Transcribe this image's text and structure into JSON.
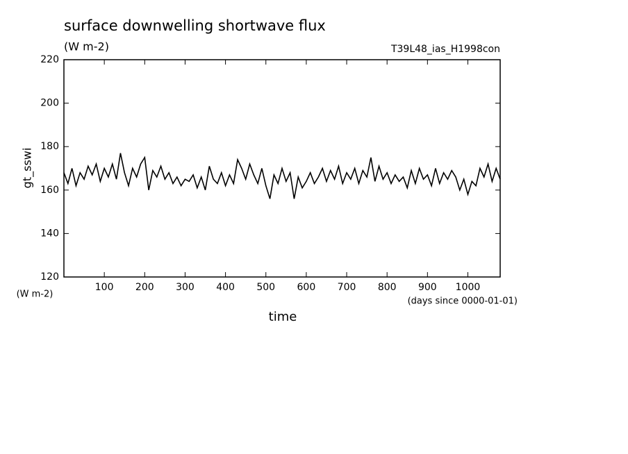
{
  "chart_data": {
    "type": "line",
    "title": "surface downwelling shortwave flux",
    "subtitle": "(W m-2)",
    "experiment": "T39L48_ias_H1998con",
    "y_label": "gt_sswi",
    "y_unit": "(W m-2)",
    "x_label": "time",
    "x_unit": "(days since 0000-01-01)",
    "xlim": [
      0,
      1080
    ],
    "xticks": [
      100,
      200,
      300,
      400,
      500,
      600,
      700,
      800,
      900,
      1000
    ],
    "ylim": [
      120,
      220
    ],
    "yticks": [
      120,
      140,
      160,
      180,
      200,
      220
    ],
    "x": [
      0,
      10,
      20,
      30,
      40,
      50,
      60,
      70,
      80,
      90,
      100,
      110,
      120,
      130,
      140,
      150,
      160,
      170,
      180,
      190,
      200,
      210,
      220,
      230,
      240,
      250,
      260,
      270,
      280,
      290,
      300,
      310,
      320,
      330,
      340,
      350,
      360,
      370,
      380,
      390,
      400,
      410,
      420,
      430,
      440,
      450,
      460,
      470,
      480,
      490,
      500,
      510,
      520,
      530,
      540,
      550,
      560,
      570,
      580,
      590,
      600,
      610,
      620,
      630,
      640,
      650,
      660,
      670,
      680,
      690,
      700,
      710,
      720,
      730,
      740,
      750,
      760,
      770,
      780,
      790,
      800,
      810,
      820,
      830,
      840,
      850,
      860,
      870,
      880,
      890,
      900,
      910,
      920,
      930,
      940,
      950,
      960,
      970,
      980,
      990,
      1000,
      1010,
      1020,
      1030,
      1040,
      1050,
      1060,
      1070,
      1080
    ],
    "series": [
      {
        "color": "#000000",
        "values": [
          168,
          163,
          170,
          162,
          168,
          165,
          171,
          167,
          172,
          164,
          170,
          166,
          172,
          165,
          177,
          168,
          162,
          170,
          166,
          172,
          175,
          160,
          169,
          166,
          171,
          165,
          168,
          163,
          166,
          162,
          165,
          164,
          167,
          161,
          166,
          160,
          171,
          165,
          163,
          168,
          162,
          167,
          163,
          174,
          170,
          165,
          172,
          167,
          163,
          170,
          162,
          156,
          167,
          163,
          170,
          164,
          168,
          156,
          166,
          161,
          164,
          168,
          163,
          166,
          170,
          164,
          169,
          165,
          171,
          163,
          168,
          165,
          170,
          163,
          169,
          166,
          175,
          164,
          171,
          165,
          168,
          163,
          167,
          164,
          166,
          161,
          169,
          163,
          170,
          165,
          167,
          162,
          170,
          163,
          168,
          165,
          169,
          166,
          160,
          165,
          158,
          164,
          162,
          170,
          166,
          172,
          164,
          170,
          165
        ]
      }
    ]
  }
}
